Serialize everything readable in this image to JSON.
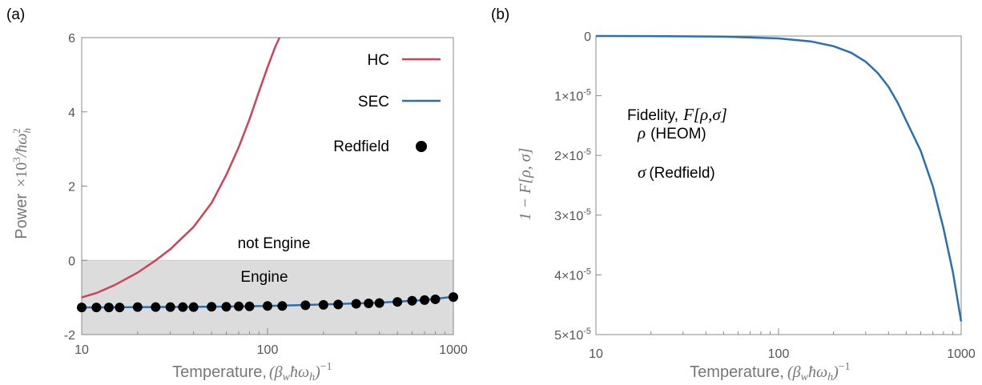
{
  "chart_data": [
    {
      "panel_label": "(a)",
      "type": "line",
      "x_scale": "log",
      "xlim": [
        10,
        1000
      ],
      "ylim": [
        -2,
        6
      ],
      "xticks": [
        10,
        100,
        1000
      ],
      "yticks": [
        -2,
        0,
        2,
        4,
        6
      ],
      "xtick_labels": [
        "10",
        "100",
        "1000"
      ],
      "ytick_labels": [
        "-2",
        "0",
        "2",
        "4",
        "6"
      ],
      "xlabel": "Temperature,",
      "xlabel_math": "(βwħωh)−1",
      "ylabel": "Power",
      "ylabel_math": "×10³/ħωh²",
      "grid": false,
      "legend_position": "top-right",
      "regions": [
        {
          "label": "not Engine",
          "y_range": [
            0,
            6
          ],
          "color": "#ffffff"
        },
        {
          "label": "Engine",
          "y_range": [
            -2,
            0
          ],
          "color": "#dcdcdc"
        }
      ],
      "series": [
        {
          "name": "HC",
          "style": "line",
          "color": "#cc4455",
          "x": [
            10,
            12,
            15,
            20,
            25,
            30,
            40,
            50,
            60,
            70,
            80,
            90,
            100,
            110,
            116
          ],
          "y": [
            -1.0,
            -0.88,
            -0.67,
            -0.33,
            0.0,
            0.3,
            0.9,
            1.55,
            2.3,
            3.05,
            3.8,
            4.55,
            5.2,
            5.75,
            6.0
          ]
        },
        {
          "name": "SEC",
          "style": "line",
          "color": "#2a6fb0",
          "x": [
            10,
            20,
            50,
            100,
            200,
            400,
            700,
            1000
          ],
          "y": [
            -1.27,
            -1.26,
            -1.25,
            -1.23,
            -1.19,
            -1.14,
            -1.07,
            -0.98
          ]
        },
        {
          "name": "Redfield",
          "style": "markers",
          "color": "#000000",
          "x": [
            10,
            12,
            14,
            16,
            20,
            25,
            30,
            35,
            40,
            50,
            60,
            70,
            80,
            100,
            120,
            160,
            200,
            240,
            300,
            350,
            400,
            500,
            600,
            700,
            800,
            1000
          ],
          "y": [
            -1.27,
            -1.27,
            -1.27,
            -1.27,
            -1.26,
            -1.26,
            -1.26,
            -1.26,
            -1.26,
            -1.25,
            -1.25,
            -1.24,
            -1.24,
            -1.23,
            -1.23,
            -1.21,
            -1.2,
            -1.19,
            -1.17,
            -1.16,
            -1.15,
            -1.12,
            -1.09,
            -1.07,
            -1.05,
            -0.99
          ]
        }
      ]
    },
    {
      "panel_label": "(b)",
      "type": "line",
      "x_scale": "log",
      "xlim": [
        10,
        1000
      ],
      "ylim": [
        0,
        5e-05
      ],
      "y_inverted": true,
      "xticks": [
        10,
        100,
        1000
      ],
      "yticks": [
        0,
        1e-05,
        2e-05,
        3e-05,
        4e-05,
        5e-05
      ],
      "xtick_labels": [
        "10",
        "100",
        "1000"
      ],
      "ytick_labels": [
        {
          "mant": "0",
          "exp": ""
        },
        {
          "mant": "1×10",
          "exp": "-5"
        },
        {
          "mant": "2×10",
          "exp": "-5"
        },
        {
          "mant": "3×10",
          "exp": "-5"
        },
        {
          "mant": "4×10",
          "exp": "-5"
        },
        {
          "mant": "5×10",
          "exp": "-5"
        }
      ],
      "xlabel": "Temperature,",
      "xlabel_math": "(βwħωh)−1",
      "ylabel_math": "1 − F[ρ, σ]",
      "grid": false,
      "annotations": [
        {
          "text": "Fidelity,",
          "math": "F[ρ,σ]"
        },
        {
          "math": "ρ",
          "text": "(HEOM)"
        },
        {
          "math": "σ",
          "text": "(Redfield)"
        }
      ],
      "series": [
        {
          "style": "line",
          "color": "#2a6fb0",
          "x": [
            10,
            20,
            50,
            100,
            150,
            200,
            250,
            300,
            350,
            400,
            450,
            500,
            600,
            700,
            800,
            900,
            1000
          ],
          "y": [
            0,
            2e-08,
            1e-07,
            4e-07,
            9e-07,
            1.7e-06,
            2.8e-06,
            4.3e-06,
            6.2e-06,
            8.5e-06,
            1.12e-05,
            1.42e-05,
            1.92e-05,
            2.52e-05,
            3.22e-05,
            3.95e-05,
            4.78e-05
          ]
        }
      ]
    }
  ]
}
